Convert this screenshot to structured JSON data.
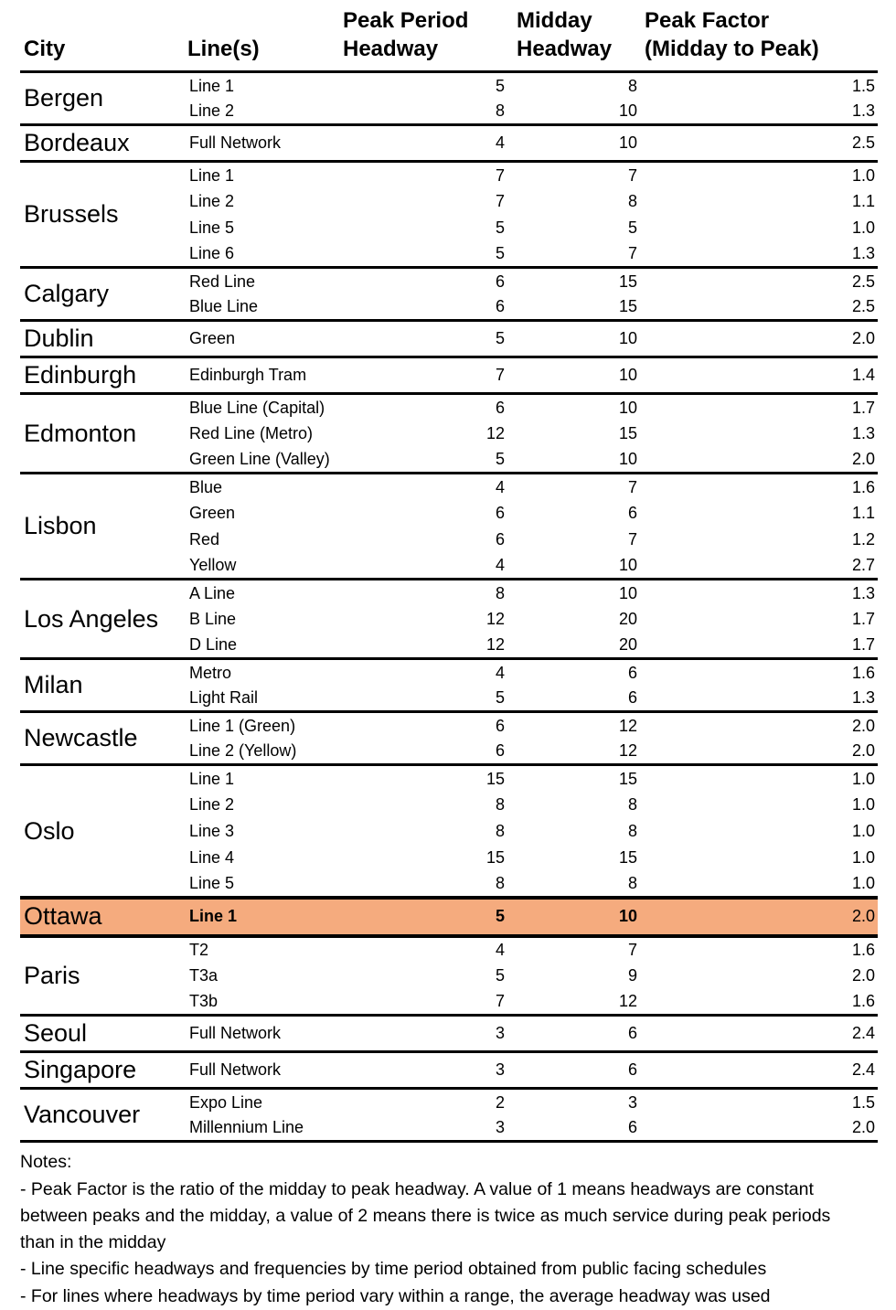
{
  "table": {
    "columns": [
      {
        "label": "City"
      },
      {
        "label": "Line(s)"
      },
      {
        "label": "Peak Period\nHeadway"
      },
      {
        "label": "Midday\nHeadway"
      },
      {
        "label": "Peak Factor\n(Midday to Peak)"
      }
    ],
    "highlight_color": "#F5AB7E",
    "groups": [
      {
        "city": "Bergen",
        "highlight": false,
        "rows": [
          {
            "line": "Line 1",
            "peak": "5",
            "midday": "8",
            "factor": "1.5"
          },
          {
            "line": "Line 2",
            "peak": "8",
            "midday": "10",
            "factor": "1.3"
          }
        ]
      },
      {
        "city": "Bordeaux",
        "highlight": false,
        "rows": [
          {
            "line": "Full Network",
            "peak": "4",
            "midday": "10",
            "factor": "2.5"
          }
        ]
      },
      {
        "city": "Brussels",
        "highlight": false,
        "rows": [
          {
            "line": "Line 1",
            "peak": "7",
            "midday": "7",
            "factor": "1.0"
          },
          {
            "line": "Line 2",
            "peak": "7",
            "midday": "8",
            "factor": "1.1"
          },
          {
            "line": "Line 5",
            "peak": "5",
            "midday": "5",
            "factor": "1.0"
          },
          {
            "line": "Line 6",
            "peak": "5",
            "midday": "7",
            "factor": "1.3"
          }
        ]
      },
      {
        "city": "Calgary",
        "highlight": false,
        "rows": [
          {
            "line": "Red Line",
            "peak": "6",
            "midday": "15",
            "factor": "2.5"
          },
          {
            "line": "Blue Line",
            "peak": "6",
            "midday": "15",
            "factor": "2.5"
          }
        ]
      },
      {
        "city": "Dublin",
        "highlight": false,
        "rows": [
          {
            "line": "Green",
            "peak": "5",
            "midday": "10",
            "factor": "2.0"
          }
        ]
      },
      {
        "city": "Edinburgh",
        "highlight": false,
        "rows": [
          {
            "line": "Edinburgh Tram",
            "peak": "7",
            "midday": "10",
            "factor": "1.4"
          }
        ]
      },
      {
        "city": "Edmonton",
        "highlight": false,
        "rows": [
          {
            "line": "Blue Line (Capital)",
            "peak": "6",
            "midday": "10",
            "factor": "1.7"
          },
          {
            "line": "Red Line (Metro)",
            "peak": "12",
            "midday": "15",
            "factor": "1.3"
          },
          {
            "line": "Green Line (Valley)",
            "peak": "5",
            "midday": "10",
            "factor": "2.0"
          }
        ]
      },
      {
        "city": "Lisbon",
        "highlight": false,
        "rows": [
          {
            "line": "Blue",
            "peak": "4",
            "midday": "7",
            "factor": "1.6"
          },
          {
            "line": "Green",
            "peak": "6",
            "midday": "6",
            "factor": "1.1"
          },
          {
            "line": "Red",
            "peak": "6",
            "midday": "7",
            "factor": "1.2"
          },
          {
            "line": "Yellow",
            "peak": "4",
            "midday": "10",
            "factor": "2.7"
          }
        ]
      },
      {
        "city": "Los Angeles",
        "highlight": false,
        "rows": [
          {
            "line": "A Line",
            "peak": "8",
            "midday": "10",
            "factor": "1.3"
          },
          {
            "line": "B Line",
            "peak": "12",
            "midday": "20",
            "factor": "1.7"
          },
          {
            "line": "D Line",
            "peak": "12",
            "midday": "20",
            "factor": "1.7"
          }
        ]
      },
      {
        "city": "Milan",
        "highlight": false,
        "rows": [
          {
            "line": "Metro",
            "peak": "4",
            "midday": "6",
            "factor": "1.6"
          },
          {
            "line": "Light Rail",
            "peak": "5",
            "midday": "6",
            "factor": "1.3"
          }
        ]
      },
      {
        "city": "Newcastle",
        "highlight": false,
        "rows": [
          {
            "line": "Line 1 (Green)",
            "peak": "6",
            "midday": "12",
            "factor": "2.0"
          },
          {
            "line": "Line 2 (Yellow)",
            "peak": "6",
            "midday": "12",
            "factor": "2.0"
          }
        ]
      },
      {
        "city": "Oslo",
        "highlight": false,
        "rows": [
          {
            "line": "Line 1",
            "peak": "15",
            "midday": "15",
            "factor": "1.0"
          },
          {
            "line": "Line 2",
            "peak": "8",
            "midday": "8",
            "factor": "1.0"
          },
          {
            "line": "Line 3",
            "peak": "8",
            "midday": "8",
            "factor": "1.0"
          },
          {
            "line": "Line 4",
            "peak": "15",
            "midday": "15",
            "factor": "1.0"
          },
          {
            "line": "Line 5",
            "peak": "8",
            "midday": "8",
            "factor": "1.0"
          }
        ]
      },
      {
        "city": "Ottawa",
        "highlight": true,
        "rows": [
          {
            "line": "Line 1",
            "peak": "5",
            "midday": "10",
            "factor": "2.0"
          }
        ]
      },
      {
        "city": "Paris",
        "highlight": false,
        "rows": [
          {
            "line": "T2",
            "peak": "4",
            "midday": "7",
            "factor": "1.6"
          },
          {
            "line": "T3a",
            "peak": "5",
            "midday": "9",
            "factor": "2.0"
          },
          {
            "line": "T3b",
            "peak": "7",
            "midday": "12",
            "factor": "1.6"
          }
        ]
      },
      {
        "city": "Seoul",
        "highlight": false,
        "rows": [
          {
            "line": "Full Network",
            "peak": "3",
            "midday": "6",
            "factor": "2.4"
          }
        ]
      },
      {
        "city": "Singapore",
        "highlight": false,
        "rows": [
          {
            "line": "Full Network",
            "peak": "3",
            "midday": "6",
            "factor": "2.4"
          }
        ]
      },
      {
        "city": "Vancouver",
        "highlight": false,
        "rows": [
          {
            "line": "Expo Line",
            "peak": "2",
            "midday": "3",
            "factor": "1.5"
          },
          {
            "line": "Millennium Line",
            "peak": "3",
            "midday": "6",
            "factor": "2.0"
          }
        ]
      }
    ]
  },
  "notes": {
    "title": "Notes:",
    "items": [
      "- Peak Factor is the ratio of the midday to peak headway. A value of 1 means headways are constant between peaks and the midday, a value of 2 means there is twice as much service during peak periods than in the midday",
      "- Line specific headways and frequencies by time period obtained from public facing schedules",
      "- For lines where headways by time period vary within a range, the average headway was used"
    ]
  }
}
